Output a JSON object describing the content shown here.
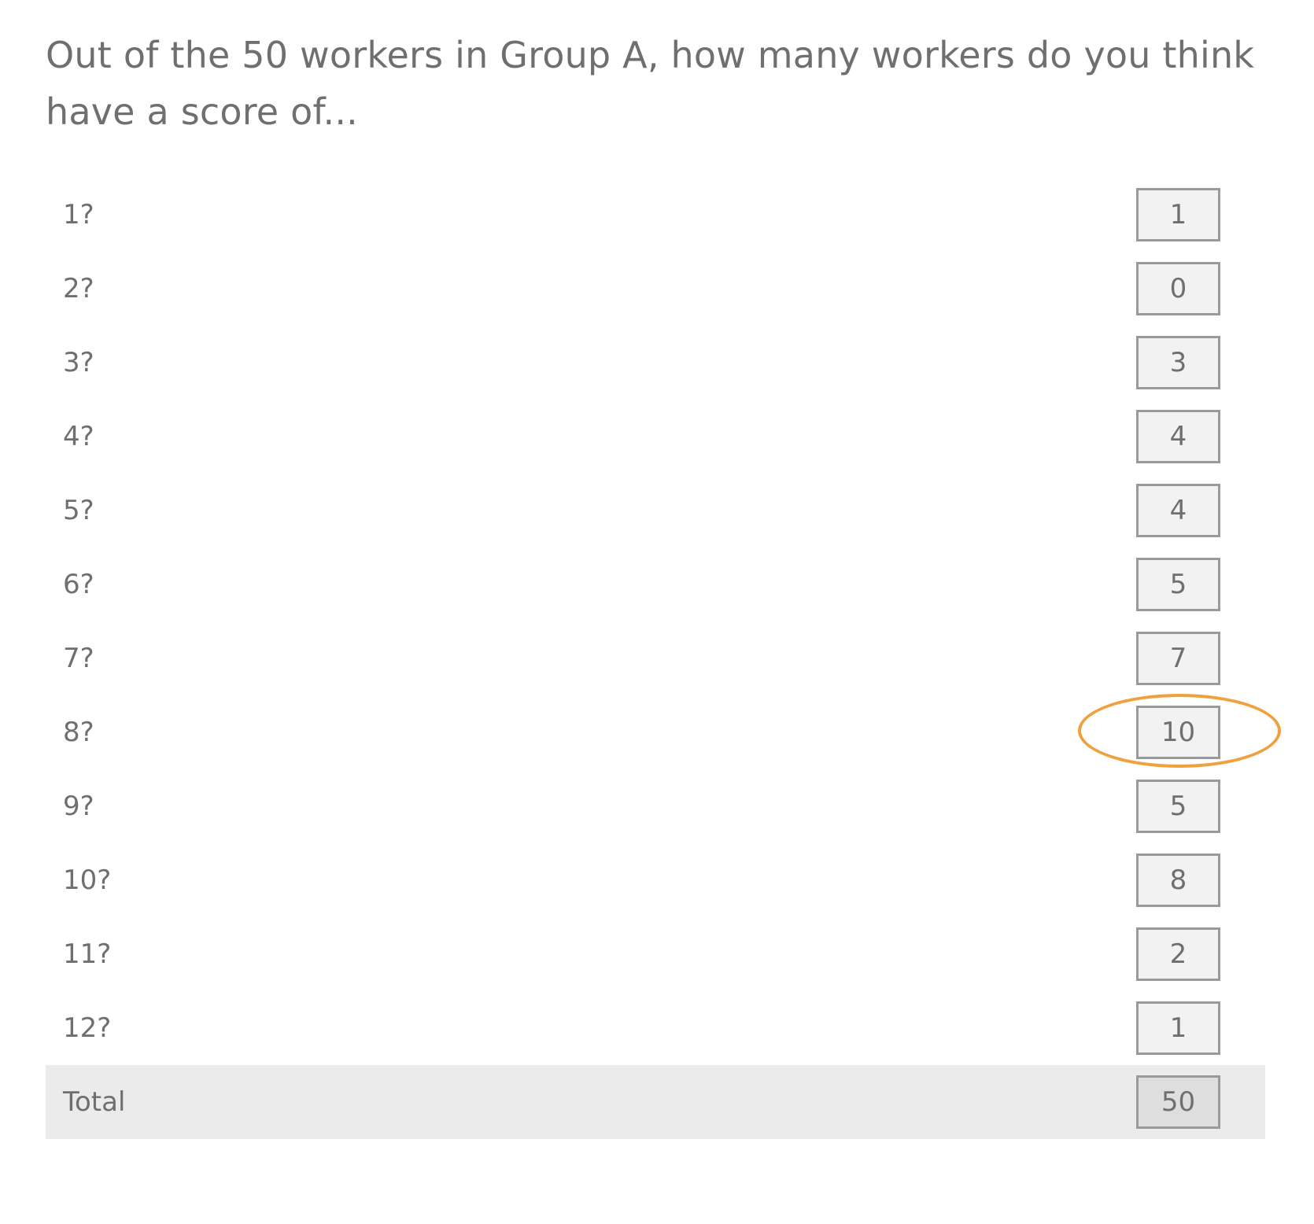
{
  "question": "Out of the 50 workers in Group A, how many workers do you think have a score of...",
  "rows": [
    {
      "label": "1?",
      "value": "1"
    },
    {
      "label": "2?",
      "value": "0"
    },
    {
      "label": "3?",
      "value": "3"
    },
    {
      "label": "4?",
      "value": "4"
    },
    {
      "label": "5?",
      "value": "4"
    },
    {
      "label": "6?",
      "value": "5"
    },
    {
      "label": "7?",
      "value": "7"
    },
    {
      "label": "8?",
      "value": "10"
    },
    {
      "label": "9?",
      "value": "5"
    },
    {
      "label": "10?",
      "value": "8"
    },
    {
      "label": "11?",
      "value": "2"
    },
    {
      "label": "12?",
      "value": "1"
    }
  ],
  "total": {
    "label": "Total",
    "value": "50"
  },
  "highlight": {
    "row_label": "8?",
    "color": "#f0a03c"
  }
}
